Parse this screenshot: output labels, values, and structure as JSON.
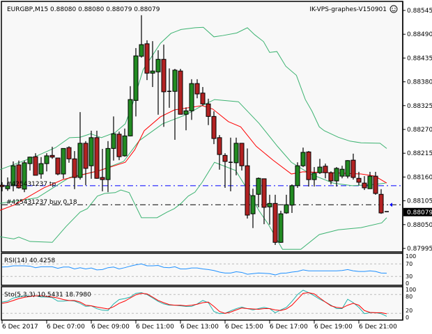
{
  "header": {
    "symbol_info": "EURGBP,M15  0.88080 0.88080 0.88079 0.88079",
    "server_label": "IK-VPS-graphes-V150901",
    "smiley_icon": "smiley-face-icon"
  },
  "colors": {
    "bull": "#228b22",
    "bear": "#b22222",
    "bands": "#3cb371",
    "ma": "#ff0000",
    "rsi": "#1e90ff",
    "sto_main": "#20b2aa",
    "sto_signal": "#ff0000",
    "tp_line": "#0000ff",
    "entry_line": "#000000",
    "background": "#f8f8f8"
  },
  "price_axis": {
    "labels": [
      "0.88545",
      "0.88490",
      "0.88435",
      "0.88380",
      "0.88325",
      "0.88270",
      "0.88215",
      "0.88160",
      "0.88105",
      "0.88050",
      "0.87995"
    ],
    "current_price": "0.88079"
  },
  "orders": {
    "tp_label": "#425431237 tp",
    "tp_price": 0.8814,
    "entry_label": "#425431237 buy 0.18",
    "entry_price": 0.88096
  },
  "time_axis": [
    "6 Dec 2017",
    "6 Dec 07:00",
    "6 Dec 09:00",
    "6 Dec 11:00",
    "6 Dec 13:00",
    "6 Dec 15:00",
    "6 Dec 17:00",
    "6 Dec 19:00",
    "6 Dec 21:00"
  ],
  "rsi": {
    "label": "RSI(14) 40.4258",
    "levels": [
      "100",
      "70",
      "30",
      "0"
    ],
    "values": [
      60,
      61,
      64,
      64,
      64,
      63,
      58,
      61,
      61,
      61,
      56,
      60,
      60,
      54,
      58,
      54,
      57,
      51,
      52,
      58,
      60,
      54,
      58,
      63,
      67,
      70,
      64,
      64,
      65,
      59,
      58,
      61,
      54,
      54,
      57,
      57,
      54,
      52,
      49,
      44,
      41,
      41,
      45,
      43,
      37,
      39,
      41,
      40,
      39,
      35,
      40,
      41,
      44,
      46,
      51,
      48,
      48,
      48,
      48,
      48,
      48,
      49,
      52,
      48,
      46,
      46,
      48,
      46,
      41,
      40.4
    ]
  },
  "stochastic": {
    "label": "Sto(5,3,3) 10.5431 18.7980",
    "levels": [
      "100",
      "80",
      "20",
      "0"
    ],
    "main": [
      56,
      59,
      69,
      72,
      76,
      75,
      76,
      72,
      72,
      70,
      59,
      59,
      61,
      59,
      52,
      42,
      44,
      35,
      30,
      29,
      50,
      64,
      67,
      72,
      84,
      86,
      80,
      69,
      58,
      50,
      46,
      46,
      44,
      42,
      42,
      50,
      61,
      54,
      26,
      19,
      20,
      28,
      35,
      40,
      35,
      31,
      35,
      39,
      35,
      22,
      31,
      39,
      58,
      80,
      94,
      86,
      76,
      65,
      56,
      46,
      35,
      35,
      65,
      54,
      39,
      19,
      22,
      22,
      19,
      10.5
    ],
    "signal": [
      52,
      55,
      61,
      67,
      71,
      74,
      76,
      76,
      74,
      72,
      69,
      64,
      61,
      61,
      56,
      46,
      44,
      40,
      37,
      34,
      41,
      52,
      59,
      69,
      79,
      84,
      82,
      72,
      61,
      54,
      48,
      46,
      46,
      44,
      46,
      49,
      54,
      56,
      42,
      26,
      20,
      24,
      31,
      37,
      35,
      34,
      33,
      35,
      35,
      31,
      29,
      34,
      46,
      65,
      84,
      86,
      82,
      69,
      56,
      44,
      39,
      37,
      46,
      52,
      46,
      29,
      23,
      22,
      22,
      18.8
    ]
  },
  "chart_data": {
    "type": "candlestick",
    "symbol": "EURGBP",
    "timeframe": "M15",
    "ylim": [
      0.87995,
      0.88545
    ],
    "candles": [
      [
        0.88141,
        0.88148,
        0.88127,
        0.88138
      ],
      [
        0.88133,
        0.88159,
        0.88128,
        0.8814
      ],
      [
        0.8814,
        0.88196,
        0.88127,
        0.88186
      ],
      [
        0.88188,
        0.88198,
        0.88133,
        0.88135
      ],
      [
        0.88132,
        0.88198,
        0.88125,
        0.88193
      ],
      [
        0.88191,
        0.88207,
        0.88175,
        0.88206
      ],
      [
        0.88207,
        0.88215,
        0.88164,
        0.88164
      ],
      [
        0.88167,
        0.88206,
        0.88156,
        0.88191
      ],
      [
        0.88191,
        0.88215,
        0.88173,
        0.88209
      ],
      [
        0.8821,
        0.8823,
        0.88202,
        0.88206
      ],
      [
        0.88204,
        0.88204,
        0.88164,
        0.88167
      ],
      [
        0.88167,
        0.88226,
        0.88156,
        0.88226
      ],
      [
        0.88228,
        0.88231,
        0.88193,
        0.88202
      ],
      [
        0.88202,
        0.8822,
        0.88132,
        0.88159
      ],
      [
        0.88159,
        0.8831,
        0.88154,
        0.88238
      ],
      [
        0.88238,
        0.88243,
        0.88141,
        0.8818
      ],
      [
        0.88186,
        0.88267,
        0.88156,
        0.88251
      ],
      [
        0.88251,
        0.88267,
        0.88156,
        0.88157
      ],
      [
        0.88159,
        0.88225,
        0.88127,
        0.88154
      ],
      [
        0.88154,
        0.88243,
        0.88125,
        0.88226
      ],
      [
        0.88226,
        0.883,
        0.88198,
        0.8826
      ],
      [
        0.88259,
        0.88265,
        0.88199,
        0.88207
      ],
      [
        0.88209,
        0.88272,
        0.88207,
        0.88255
      ],
      [
        0.88255,
        0.8837,
        0.88254,
        0.88339
      ],
      [
        0.88337,
        0.88458,
        0.883,
        0.8844
      ],
      [
        0.88439,
        0.88534,
        0.88436,
        0.88466
      ],
      [
        0.88468,
        0.88476,
        0.88384,
        0.884
      ],
      [
        0.884,
        0.88474,
        0.88368,
        0.88405
      ],
      [
        0.88403,
        0.88453,
        0.88304,
        0.88432
      ],
      [
        0.88432,
        0.88466,
        0.88276,
        0.88357
      ],
      [
        0.88358,
        0.88411,
        0.8832,
        0.88358
      ],
      [
        0.88358,
        0.8841,
        0.88246,
        0.88407
      ],
      [
        0.88405,
        0.8841,
        0.88305,
        0.88305
      ],
      [
        0.88305,
        0.88321,
        0.88268,
        0.88313
      ],
      [
        0.88313,
        0.88386,
        0.88292,
        0.88376
      ],
      [
        0.88376,
        0.88386,
        0.88342,
        0.88352
      ],
      [
        0.88354,
        0.88368,
        0.88325,
        0.88329
      ],
      [
        0.88329,
        0.88341,
        0.8828,
        0.883
      ],
      [
        0.883,
        0.88312,
        0.88236,
        0.88249
      ],
      [
        0.88251,
        0.88257,
        0.88177,
        0.88212
      ],
      [
        0.8821,
        0.88215,
        0.88135,
        0.88196
      ],
      [
        0.88194,
        0.88251,
        0.88127,
        0.88194
      ],
      [
        0.88193,
        0.88251,
        0.88164,
        0.88238
      ],
      [
        0.88238,
        0.88238,
        0.88175,
        0.88186
      ],
      [
        0.88186,
        0.88226,
        0.88064,
        0.88072
      ],
      [
        0.88075,
        0.88133,
        0.88042,
        0.88117
      ],
      [
        0.8812,
        0.88159,
        0.8809,
        0.88157
      ],
      [
        0.88156,
        0.88156,
        0.88051,
        0.8809
      ],
      [
        0.88091,
        0.88119,
        0.8805,
        0.88099
      ],
      [
        0.88099,
        0.88119,
        0.88003,
        0.88009
      ],
      [
        0.88009,
        0.88082,
        0.88008,
        0.88075
      ],
      [
        0.88077,
        0.88119,
        0.88075,
        0.88096
      ],
      [
        0.88095,
        0.88143,
        0.88077,
        0.8814
      ],
      [
        0.8814,
        0.88194,
        0.88135,
        0.88186
      ],
      [
        0.88186,
        0.88228,
        0.88183,
        0.88217
      ],
      [
        0.88218,
        0.8822,
        0.88138,
        0.88154
      ],
      [
        0.88154,
        0.88183,
        0.88138,
        0.88169
      ],
      [
        0.8817,
        0.88202,
        0.88167,
        0.88183
      ],
      [
        0.88185,
        0.88191,
        0.88157,
        0.8817
      ],
      [
        0.8817,
        0.88173,
        0.88143,
        0.88151
      ],
      [
        0.88151,
        0.88183,
        0.88138,
        0.8818
      ],
      [
        0.88162,
        0.88186,
        0.88157,
        0.88178
      ],
      [
        0.88162,
        0.88199,
        0.88157,
        0.88198
      ],
      [
        0.88199,
        0.88214,
        0.88154,
        0.88159
      ],
      [
        0.88157,
        0.88172,
        0.88141,
        0.88148
      ],
      [
        0.88146,
        0.88162,
        0.8813,
        0.88135
      ],
      [
        0.88133,
        0.88172,
        0.88133,
        0.88162
      ],
      [
        0.88162,
        0.88172,
        0.88119,
        0.88122
      ],
      [
        0.8812,
        0.88132,
        0.88075,
        0.88077
      ],
      [
        0.8808,
        0.8808,
        0.88079,
        0.88079
      ]
    ],
    "bollinger_upper": [
      [
        -0.4,
        0.88177
      ],
      [
        5.9,
        0.88207
      ],
      [
        9.6,
        0.88228
      ],
      [
        12.1,
        0.88251
      ],
      [
        14,
        0.88252
      ],
      [
        15.9,
        0.8826
      ],
      [
        17.8,
        0.88251
      ],
      [
        20.3,
        0.88263
      ],
      [
        22.1,
        0.88283
      ],
      [
        23.4,
        0.88328
      ],
      [
        25.3,
        0.88408
      ],
      [
        28.4,
        0.88469
      ],
      [
        30.3,
        0.88492
      ],
      [
        32.1,
        0.88501
      ],
      [
        34.6,
        0.88505
      ],
      [
        36.1,
        0.88506
      ],
      [
        38,
        0.88484
      ],
      [
        39.6,
        0.88487
      ],
      [
        42.1,
        0.88493
      ],
      [
        44,
        0.88505
      ],
      [
        45.3,
        0.88489
      ],
      [
        46.9,
        0.88473
      ],
      [
        48,
        0.88448
      ],
      [
        49.3,
        0.8845
      ],
      [
        50.9,
        0.88416
      ],
      [
        52.8,
        0.88395
      ],
      [
        54.4,
        0.88339
      ],
      [
        55.6,
        0.88312
      ],
      [
        56.9,
        0.88276
      ],
      [
        57.8,
        0.88267
      ],
      [
        60.3,
        0.88252
      ],
      [
        62.4,
        0.88243
      ],
      [
        64.4,
        0.88239
      ],
      [
        67.8,
        0.88238
      ],
      [
        69,
        0.88226
      ]
    ],
    "bollinger_middle": [
      [
        -0.4,
        0.88099
      ],
      [
        6.3,
        0.88112
      ],
      [
        12.1,
        0.88159
      ],
      [
        17.5,
        0.88175
      ],
      [
        21.8,
        0.88196
      ],
      [
        24.6,
        0.88244
      ],
      [
        28.8,
        0.88283
      ],
      [
        33,
        0.88304
      ],
      [
        35.9,
        0.88325
      ],
      [
        38.1,
        0.88339
      ],
      [
        42.4,
        0.88334
      ],
      [
        46.1,
        0.88284
      ],
      [
        49.4,
        0.88231
      ],
      [
        51.9,
        0.88194
      ],
      [
        55.3,
        0.88167
      ],
      [
        59.4,
        0.88146
      ],
      [
        62.8,
        0.8814
      ],
      [
        66.9,
        0.88143
      ],
      [
        68.8,
        0.88146
      ]
    ],
    "bollinger_lower": [
      [
        -0.4,
        0.88022
      ],
      [
        2.1,
        0.88017
      ],
      [
        3,
        0.88021
      ],
      [
        5,
        0.88011
      ],
      [
        9,
        0.88009
      ],
      [
        11.5,
        0.88046
      ],
      [
        14,
        0.88079
      ],
      [
        15.3,
        0.88087
      ],
      [
        17.1,
        0.88116
      ],
      [
        18.4,
        0.88122
      ],
      [
        20.3,
        0.88124
      ],
      [
        21.3,
        0.8813
      ],
      [
        22.8,
        0.88124
      ],
      [
        25,
        0.88066
      ],
      [
        27.8,
        0.88066
      ],
      [
        29.6,
        0.88079
      ],
      [
        30.9,
        0.88087
      ],
      [
        32.1,
        0.88099
      ],
      [
        33.4,
        0.88116
      ],
      [
        34.6,
        0.88125
      ],
      [
        35.9,
        0.88148
      ],
      [
        38.1,
        0.88194
      ],
      [
        41.9,
        0.88175
      ],
      [
        43.6,
        0.8814
      ],
      [
        46.1,
        0.88082
      ],
      [
        47.8,
        0.8805
      ],
      [
        50.3,
        0.87993
      ],
      [
        53.6,
        0.87993
      ],
      [
        56.9,
        0.88027
      ],
      [
        60.3,
        0.88038
      ],
      [
        64.4,
        0.88043
      ],
      [
        68.1,
        0.88054
      ],
      [
        69,
        0.88066
      ]
    ],
    "moving_average": [
      [
        -0.4,
        0.88083
      ],
      [
        2.1,
        0.88095
      ],
      [
        7.5,
        0.88135
      ],
      [
        10.9,
        0.88154
      ],
      [
        17.5,
        0.88175
      ],
      [
        22.1,
        0.88194
      ],
      [
        23.8,
        0.88223
      ],
      [
        25.5,
        0.88267
      ],
      [
        28.4,
        0.88299
      ],
      [
        30.9,
        0.88315
      ],
      [
        35.9,
        0.88325
      ],
      [
        37.8,
        0.88317
      ],
      [
        40.6,
        0.88288
      ],
      [
        42.8,
        0.88276
      ],
      [
        45.6,
        0.88231
      ],
      [
        48.6,
        0.88199
      ],
      [
        51.9,
        0.88167
      ],
      [
        54,
        0.88172
      ],
      [
        58.6,
        0.8817
      ],
      [
        64.4,
        0.88167
      ],
      [
        66.9,
        0.88162
      ],
      [
        69,
        0.88146
      ]
    ]
  }
}
